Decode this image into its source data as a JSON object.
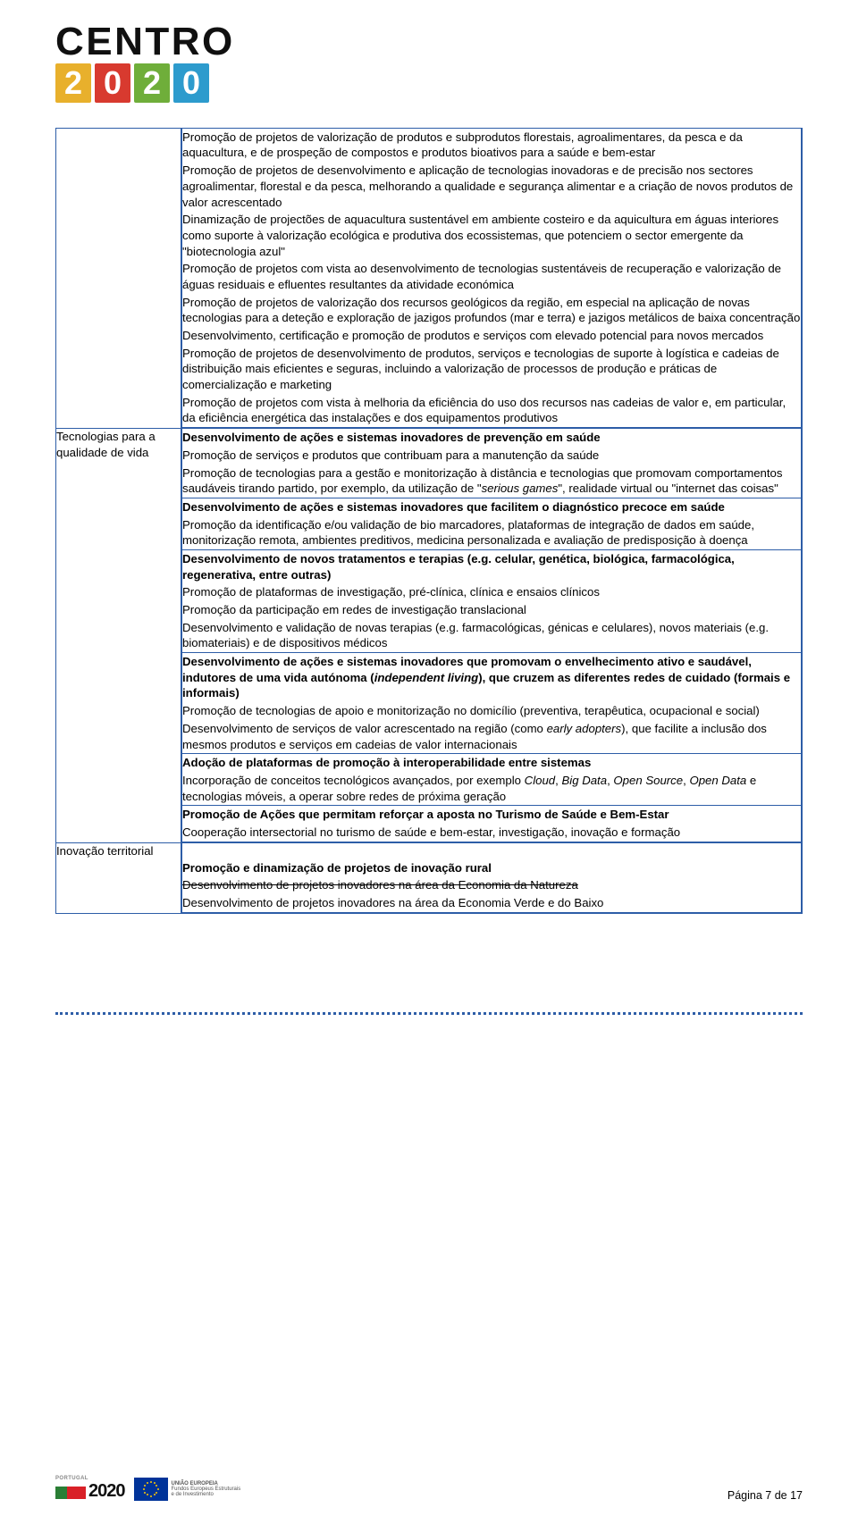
{
  "logo": {
    "word_top": "CENTRO",
    "tiles": [
      "2",
      "0",
      "2",
      "0"
    ],
    "tile_colors": [
      "#e8b02c",
      "#d83a2f",
      "#6fae3a",
      "#2d9bcd"
    ]
  },
  "rows": [
    {
      "label": "",
      "cells": [
        {
          "paras": [
            {
              "segments": [
                {
                  "t": "Promoção de projetos de valorização de produtos e subprodutos florestais, agroalimentares, da pesca e da aquacultura, e de prospeção de compostos e produtos bioativos para a saúde e bem-estar"
                }
              ]
            },
            {
              "segments": [
                {
                  "t": "Promoção de projetos de desenvolvimento e aplicação de tecnologias inovadoras e de precisão nos sectores agroalimentar, florestal e da pesca, melhorando a qualidade e segurança alimentar e a criação de novos produtos de valor acrescentado"
                }
              ]
            },
            {
              "segments": [
                {
                  "t": "Dinamização de projectões de aquacultura sustentável em ambiente costeiro e da aquicultura em águas interiores como suporte à valorização ecológica e produtiva dos ecossistemas, que potenciem o sector emergente da \"biotecnologia azul\""
                }
              ]
            },
            {
              "segments": [
                {
                  "t": "Promoção de projetos com vista ao desenvolvimento de tecnologias sustentáveis de recuperação e valorização de águas residuais e efluentes resultantes da atividade económica"
                }
              ]
            },
            {
              "segments": [
                {
                  "t": "Promoção de projetos de valorização dos recursos geológicos da região, em especial na aplicação de novas tecnologias para a deteção e exploração de jazigos profundos (mar e terra) e jazigos metálicos de baixa concentração"
                }
              ]
            },
            {
              "segments": [
                {
                  "t": "Desenvolvimento, certificação e promoção de produtos e serviços com elevado potencial para novos mercados"
                }
              ]
            },
            {
              "segments": [
                {
                  "t": "Promoção de projetos de desenvolvimento de produtos, serviços e tecnologias de suporte à logística e cadeias de distribuição mais eficientes e seguras, incluindo a valorização de processos de produção e práticas de comercialização e marketing"
                }
              ]
            },
            {
              "segments": [
                {
                  "t": "Promoção de projetos com vista à melhoria da eficiência do uso dos recursos nas cadeias de valor e, em particular, da eficiência energética das instalações e dos equipamentos produtivos"
                }
              ]
            }
          ]
        }
      ]
    },
    {
      "label": "Tecnologias para a qualidade de vida",
      "cells": [
        {
          "paras": [
            {
              "segments": [
                {
                  "t": "Desenvolvimento de ações e sistemas inovadores de prevenção em saúde",
                  "bold": true
                }
              ]
            },
            {
              "segments": [
                {
                  "t": "Promoção de serviços e produtos que contribuam para a manutenção da saúde"
                }
              ]
            },
            {
              "segments": [
                {
                  "t": "Promoção de tecnologias para a gestão e monitorização à distância e tecnologias que promovam comportamentos saudáveis tirando partido, por exemplo, da utilização de \""
                },
                {
                  "t": "serious games",
                  "italic": true
                },
                {
                  "t": "\", realidade virtual ou \"internet das coisas\""
                }
              ]
            }
          ]
        },
        {
          "paras": [
            {
              "segments": [
                {
                  "t": "Desenvolvimento de ações e sistemas inovadores que facilitem o diagnóstico precoce em saúde",
                  "bold": true
                }
              ]
            },
            {
              "segments": [
                {
                  "t": "Promoção da identificação e/ou validação de bio marcadores, plataformas de integração de dados em saúde, monitorização remota, ambientes preditivos, medicina personalizada e avaliação de predisposição à doença"
                }
              ]
            }
          ]
        },
        {
          "paras": [
            {
              "segments": [
                {
                  "t": "Desenvolvimento de novos tratamentos e terapias (e.g. celular, genética, biológica, farmacológica, regenerativa, entre outras)",
                  "bold": true
                }
              ]
            },
            {
              "segments": [
                {
                  "t": "Promoção de plataformas de investigação, pré-clínica, clínica e ensaios clínicos"
                }
              ]
            },
            {
              "segments": [
                {
                  "t": "Promoção da participação em redes de investigação translacional"
                }
              ]
            },
            {
              "segments": [
                {
                  "t": "Desenvolvimento e validação de novas terapias (e.g. farmacológicas, génicas e celulares), novos materiais (e.g. biomateriais) e de dispositivos médicos"
                }
              ]
            }
          ]
        },
        {
          "paras": [
            {
              "segments": [
                {
                  "t": "Desenvolvimento de ações e sistemas inovadores que promovam o envelhecimento ativo e saudável, indutores de uma vida autónoma (",
                  "bold": true
                },
                {
                  "t": "independent living",
                  "bold": true,
                  "italic": true
                },
                {
                  "t": "), que cruzem as diferentes redes de cuidado (formais e informais)",
                  "bold": true
                }
              ]
            },
            {
              "segments": [
                {
                  "t": "Promoção de tecnologias de apoio e monitorização no domicílio (preventiva, terapêutica, ocupacional e social)"
                }
              ]
            },
            {
              "segments": [
                {
                  "t": "Desenvolvimento de serviços de valor acrescentado na região (como "
                },
                {
                  "t": "early adopters",
                  "italic": true
                },
                {
                  "t": "), que facilite a inclusão dos mesmos produtos e serviços em cadeias de valor internacionais"
                }
              ]
            }
          ]
        },
        {
          "paras": [
            {
              "segments": [
                {
                  "t": "Adoção de plataformas de promoção à interoperabilidade entre sistemas",
                  "bold": true
                }
              ]
            },
            {
              "segments": [
                {
                  "t": "Incorporação de conceitos tecnológicos avançados, por exemplo "
                },
                {
                  "t": "Cloud",
                  "italic": true
                },
                {
                  "t": ", "
                },
                {
                  "t": "Big Data",
                  "italic": true
                },
                {
                  "t": ", "
                },
                {
                  "t": "Open Source",
                  "italic": true
                },
                {
                  "t": ", "
                },
                {
                  "t": "Open Data",
                  "italic": true
                },
                {
                  "t": " e tecnologias móveis, a operar sobre redes de próxima geração"
                }
              ]
            }
          ]
        },
        {
          "paras": [
            {
              "segments": [
                {
                  "t": "Promoção de Ações que permitam reforçar a aposta no Turismo de Saúde e Bem-Estar",
                  "bold": true
                }
              ]
            },
            {
              "segments": [
                {
                  "t": "Cooperação intersectorial no turismo de saúde e bem-estar, investigação, inovação e formação"
                }
              ]
            }
          ]
        }
      ]
    },
    {
      "label": "Inovação territorial",
      "cells": [
        {
          "paras": [
            {
              "segments": [
                {
                  "t": "Promoção e dinamização de projetos de inovação rural",
                  "bold": true
                }
              ]
            },
            {
              "segments": [
                {
                  "t": "Desenvolvimento de projetos inovadores na área da Economia da Natureza",
                  "strike": true
                }
              ]
            },
            {
              "segments": [
                {
                  "t": "Desenvolvimento de projetos inovadores na área da Economia Verde e do Baixo"
                }
              ]
            }
          ]
        }
      ]
    }
  ],
  "footer": {
    "pt2020_word": "2020",
    "pt2020_label": "PORTUGAL",
    "eu_label_line1": "UNIÃO EUROPEIA",
    "eu_label_line2": "Fundos Europeus Estruturais",
    "eu_label_line3": "e de Investimento",
    "page": "Página 7 de 17"
  }
}
